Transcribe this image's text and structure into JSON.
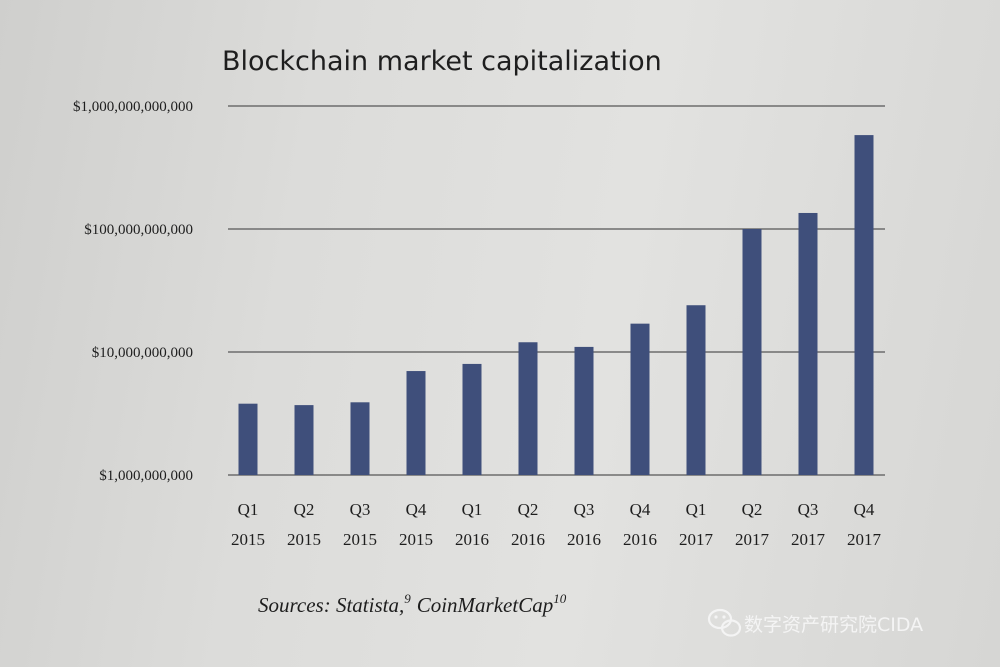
{
  "chart_data": {
    "type": "bar",
    "title": "Blockchain market capitalization",
    "xlabel": "",
    "ylabel": "",
    "y_scale": "log",
    "ylim": [
      1000000000,
      1000000000000
    ],
    "y_ticks": [
      {
        "value": 1000000000,
        "label": "$1,000,000,000"
      },
      {
        "value": 10000000000,
        "label": "$10,000,000,000"
      },
      {
        "value": 100000000000,
        "label": "$100,000,000,000"
      },
      {
        "value": 1000000000000,
        "label": "$1,000,000,000,000"
      }
    ],
    "grid": true,
    "categories": [
      {
        "quarter": "Q1",
        "year": "2015"
      },
      {
        "quarter": "Q2",
        "year": "2015"
      },
      {
        "quarter": "Q3",
        "year": "2015"
      },
      {
        "quarter": "Q4",
        "year": "2015"
      },
      {
        "quarter": "Q1",
        "year": "2016"
      },
      {
        "quarter": "Q2",
        "year": "2016"
      },
      {
        "quarter": "Q3",
        "year": "2016"
      },
      {
        "quarter": "Q4",
        "year": "2016"
      },
      {
        "quarter": "Q1",
        "year": "2017"
      },
      {
        "quarter": "Q2",
        "year": "2017"
      },
      {
        "quarter": "Q3",
        "year": "2017"
      },
      {
        "quarter": "Q4",
        "year": "2017"
      }
    ],
    "values": [
      3800000000,
      3700000000,
      3900000000,
      7000000000,
      8000000000,
      12000000000,
      11000000000,
      17000000000,
      24000000000,
      100000000000,
      135000000000,
      580000000000
    ],
    "color": "#3f4f7b"
  },
  "source": {
    "text": "Sources: Statista,",
    "ref1": "9",
    "text2": "CoinMarketCap",
    "ref2": "10"
  },
  "watermark": {
    "icon": "wechat-icon",
    "text": "数字资产研究院CIDA"
  }
}
